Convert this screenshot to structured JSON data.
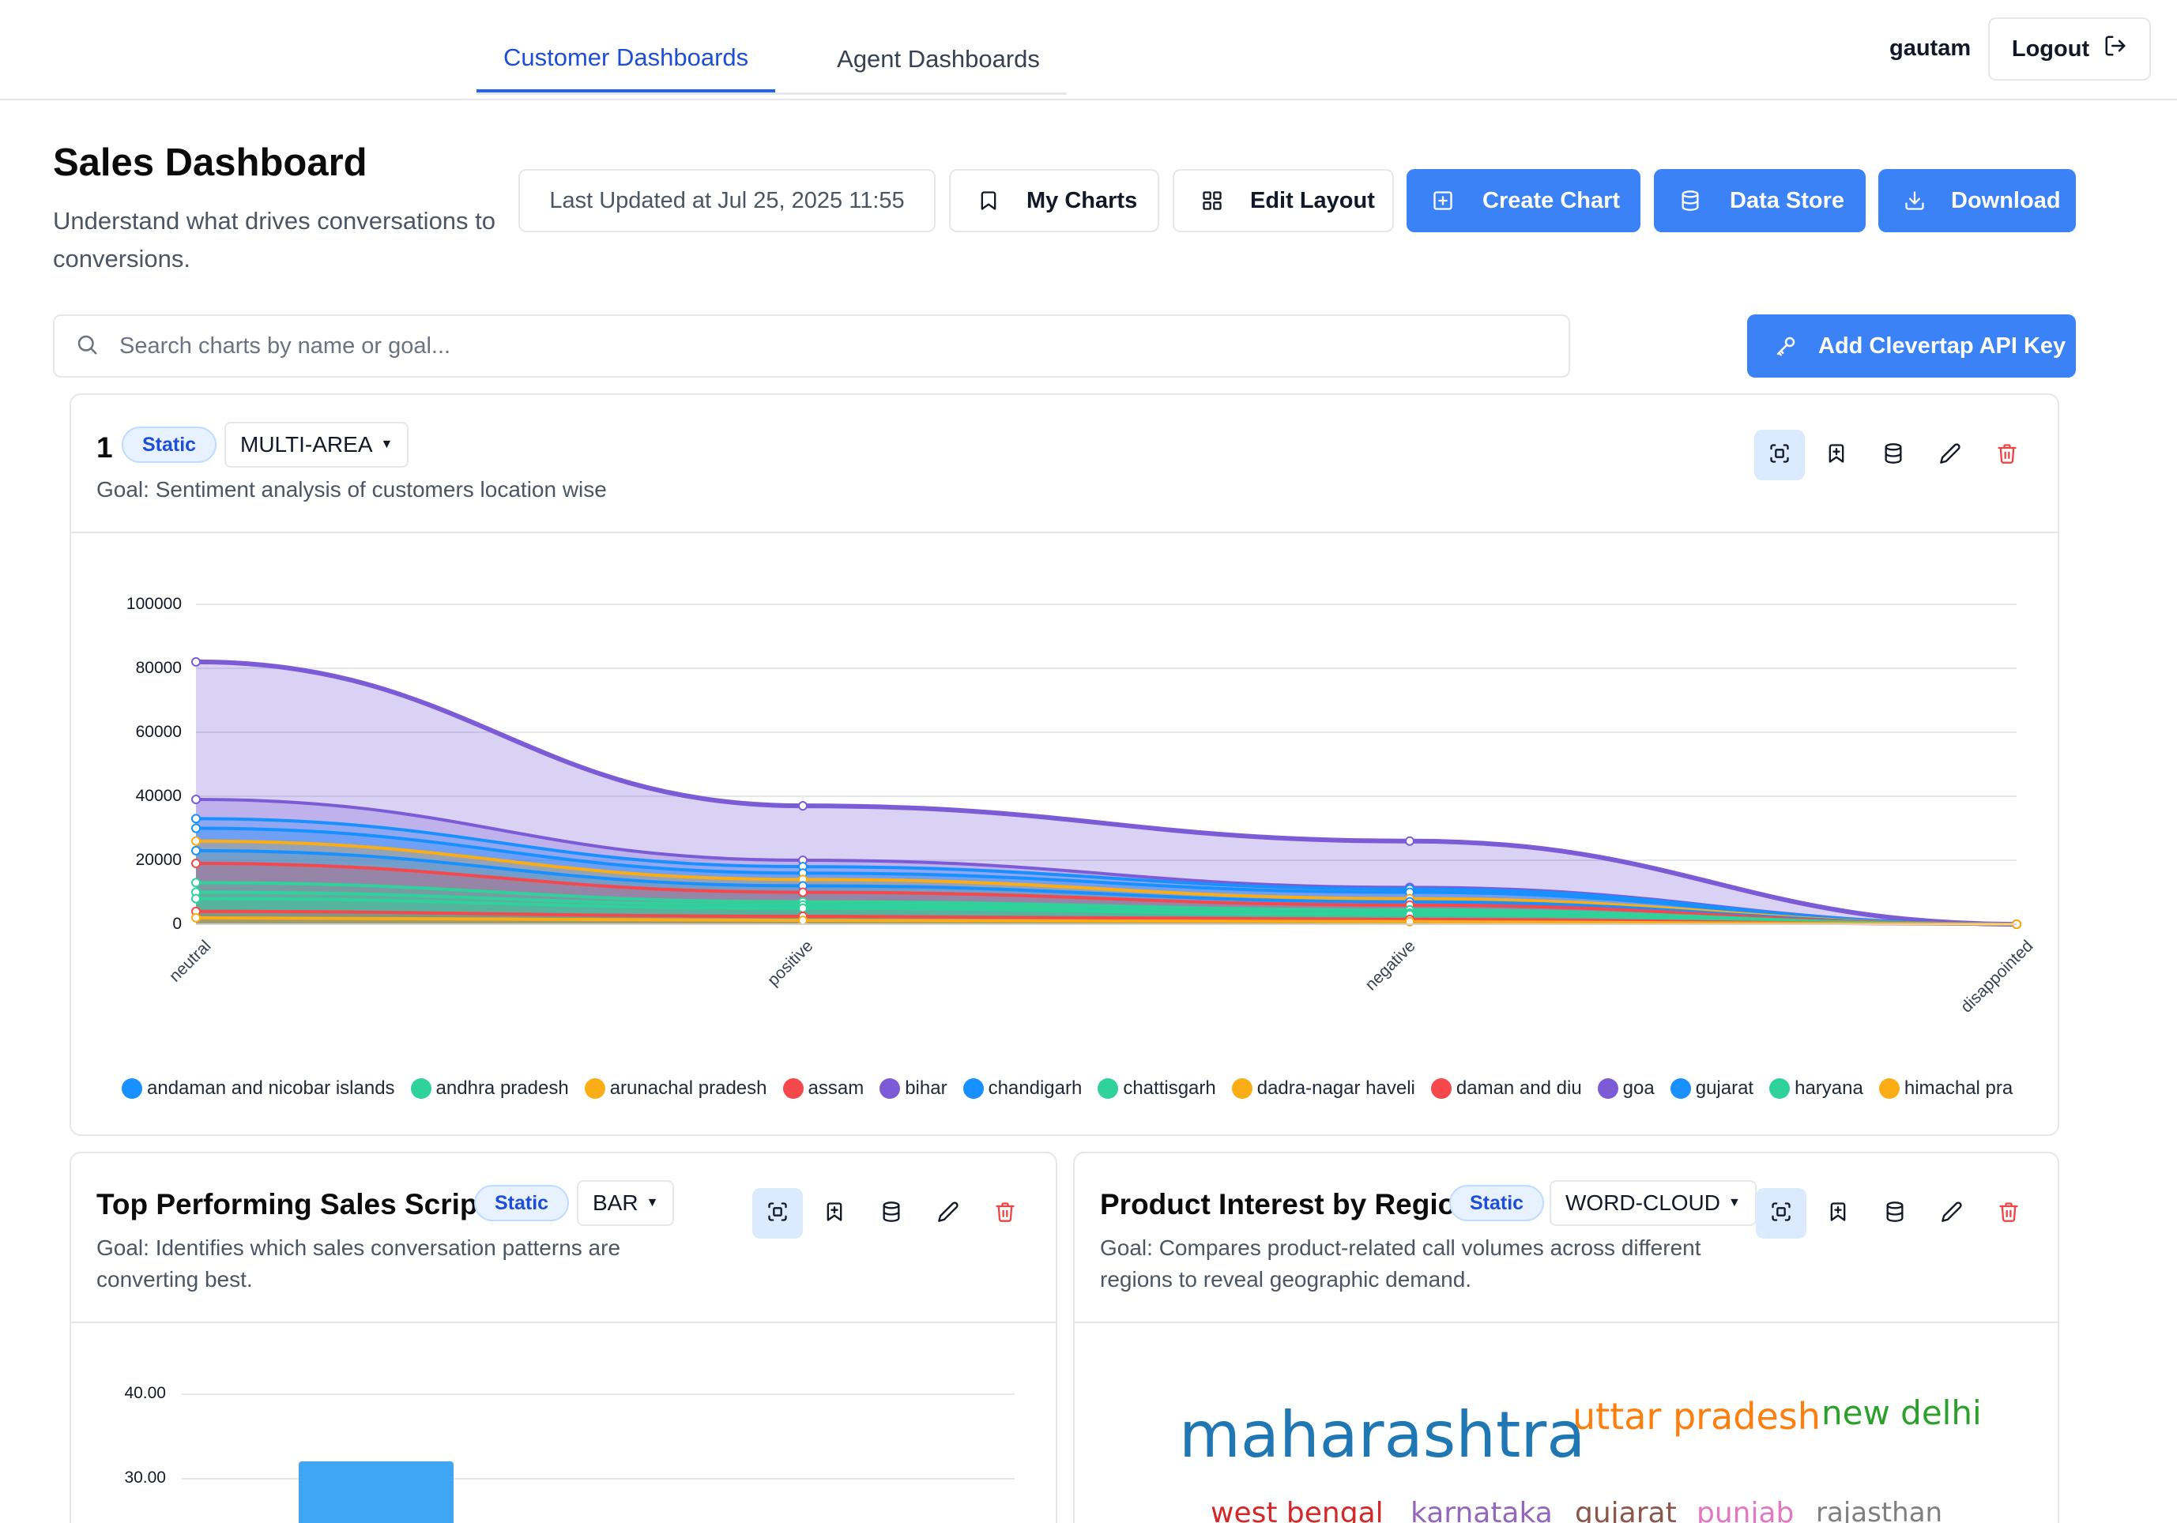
{
  "nav": {
    "tabs": [
      {
        "label": "Customer Dashboards",
        "active": true
      },
      {
        "label": "Agent Dashboards",
        "active": false
      }
    ],
    "user": "gautam",
    "logout_label": "Logout"
  },
  "header": {
    "title": "Sales Dashboard",
    "subtitle": "Understand what drives conversations to conversions.",
    "last_updated": "Last Updated at Jul 25, 2025 11:55",
    "buttons": {
      "my_charts": "My Charts",
      "edit_layout": "Edit Layout",
      "create_chart": "Create Chart",
      "data_store": "Data Store",
      "download": "Download"
    }
  },
  "search": {
    "placeholder": "Search charts by name or goal..."
  },
  "add_api_key_label": "Add Clevertap API Key",
  "colors": {
    "accent": "#3b82f6",
    "delete": "#ef4444"
  },
  "cards": [
    {
      "title": "1",
      "badge": "Static",
      "type": "MULTI-AREA",
      "goal": "Goal: Sentiment analysis of customers location wise"
    },
    {
      "title": "Top Performing Sales Scripts",
      "badge": "Static",
      "type": "BAR",
      "goal": "Goal: Identifies which sales conversation patterns are converting best."
    },
    {
      "title": "Product Interest by Region",
      "badge": "Static",
      "type": "WORD-CLOUD",
      "goal": "Goal: Compares product-related call volumes across different regions to reveal geographic demand."
    }
  ],
  "chart_data": [
    {
      "type": "area",
      "categories": [
        "neutral",
        "positive",
        "negative",
        "disappointed"
      ],
      "yticks": [
        "100000",
        "80000",
        "60000",
        "40000",
        "20000",
        "0"
      ],
      "ylim": [
        0,
        100000
      ],
      "grid": true,
      "legend_position": "bottom",
      "series": [
        {
          "name": "andaman and nicobar islands",
          "color": "#1890ff",
          "values": [
            33000,
            18000,
            11000,
            0
          ]
        },
        {
          "name": "andhra pradesh",
          "color": "#2fd29a",
          "values": [
            13000,
            7000,
            4500,
            0
          ]
        },
        {
          "name": "arunachal pradesh",
          "color": "#faad14",
          "values": [
            26000,
            14000,
            8000,
            0
          ]
        },
        {
          "name": "assam",
          "color": "#f5484d",
          "values": [
            4000,
            2500,
            1500,
            0
          ]
        },
        {
          "name": "bihar",
          "color": "#7b5cd6",
          "values": [
            82000,
            37000,
            26000,
            0
          ]
        },
        {
          "name": "chandigarh",
          "color": "#1890ff",
          "values": [
            30000,
            16000,
            10000,
            0
          ]
        },
        {
          "name": "chattisgarh",
          "color": "#2fd29a",
          "values": [
            8000,
            5000,
            3000,
            0
          ]
        },
        {
          "name": "dadra-nagar haveli",
          "color": "#faad14",
          "values": [
            2000,
            1200,
            800,
            0
          ]
        },
        {
          "name": "daman and diu",
          "color": "#f5484d",
          "values": [
            19000,
            10000,
            6000,
            0
          ]
        },
        {
          "name": "goa",
          "color": "#7b5cd6",
          "values": [
            39000,
            20000,
            11500,
            0
          ]
        },
        {
          "name": "gujarat",
          "color": "#1890ff",
          "values": [
            23000,
            12000,
            7000,
            0
          ]
        },
        {
          "name": "haryana",
          "color": "#2fd29a",
          "values": [
            10000,
            6000,
            3500,
            0
          ]
        },
        {
          "name": "himachal pra"
        }
      ]
    },
    {
      "type": "bar",
      "yticks": [
        "40.00",
        "30.00"
      ],
      "values": [
        32
      ]
    },
    {
      "type": "wordcloud",
      "words": [
        {
          "text": "maharashtra",
          "color": "#1f77b4"
        },
        {
          "text": "uttar pradesh",
          "color": "#ff7f0e"
        },
        {
          "text": "new delhi",
          "color": "#2ca02c"
        },
        {
          "text": "west bengal",
          "color": "#d62728"
        },
        {
          "text": "karnataka",
          "color": "#9467bd"
        },
        {
          "text": "gujarat",
          "color": "#8c564b"
        },
        {
          "text": "punjab",
          "color": "#e377c2"
        },
        {
          "text": "rajasthan",
          "color": "#7f7f7f"
        }
      ]
    }
  ]
}
